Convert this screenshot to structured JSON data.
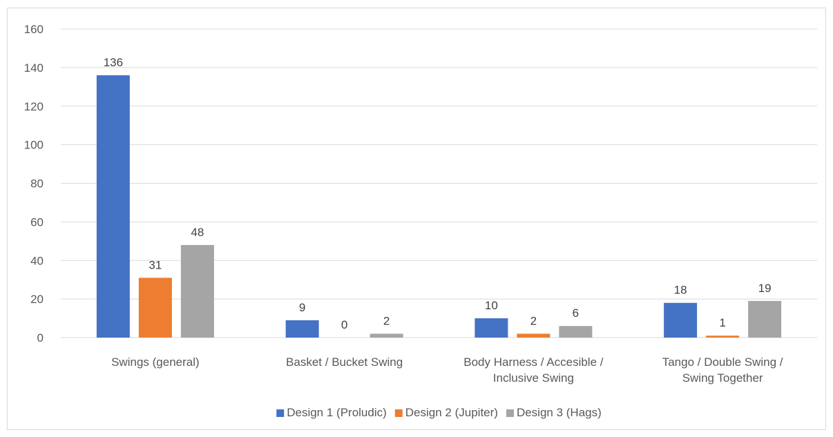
{
  "chart_data": {
    "type": "bar",
    "title": "",
    "xlabel": "",
    "ylabel": "",
    "categories": [
      [
        "Swings (general)"
      ],
      [
        "Basket / Bucket  Swing"
      ],
      [
        "Body Harness / Accesible /",
        "Inclusive  Swing"
      ],
      [
        "Tango / Double Swing /",
        "Swing Together"
      ]
    ],
    "series": [
      {
        "name": "Design 1 (Proludic)",
        "color": "#4472c4",
        "values": [
          136,
          9,
          10,
          18
        ]
      },
      {
        "name": "Design 2 (Jupiter)",
        "color": "#ed7d31",
        "values": [
          31,
          0,
          2,
          1
        ]
      },
      {
        "name": "Design 3 (Hags)",
        "color": "#a5a5a5",
        "values": [
          48,
          2,
          6,
          19
        ]
      }
    ],
    "ylim": [
      0,
      160
    ],
    "yticks": [
      0,
      20,
      40,
      60,
      80,
      100,
      120,
      140,
      160
    ],
    "grid": true,
    "legend": "bottom",
    "data_labels": true
  }
}
